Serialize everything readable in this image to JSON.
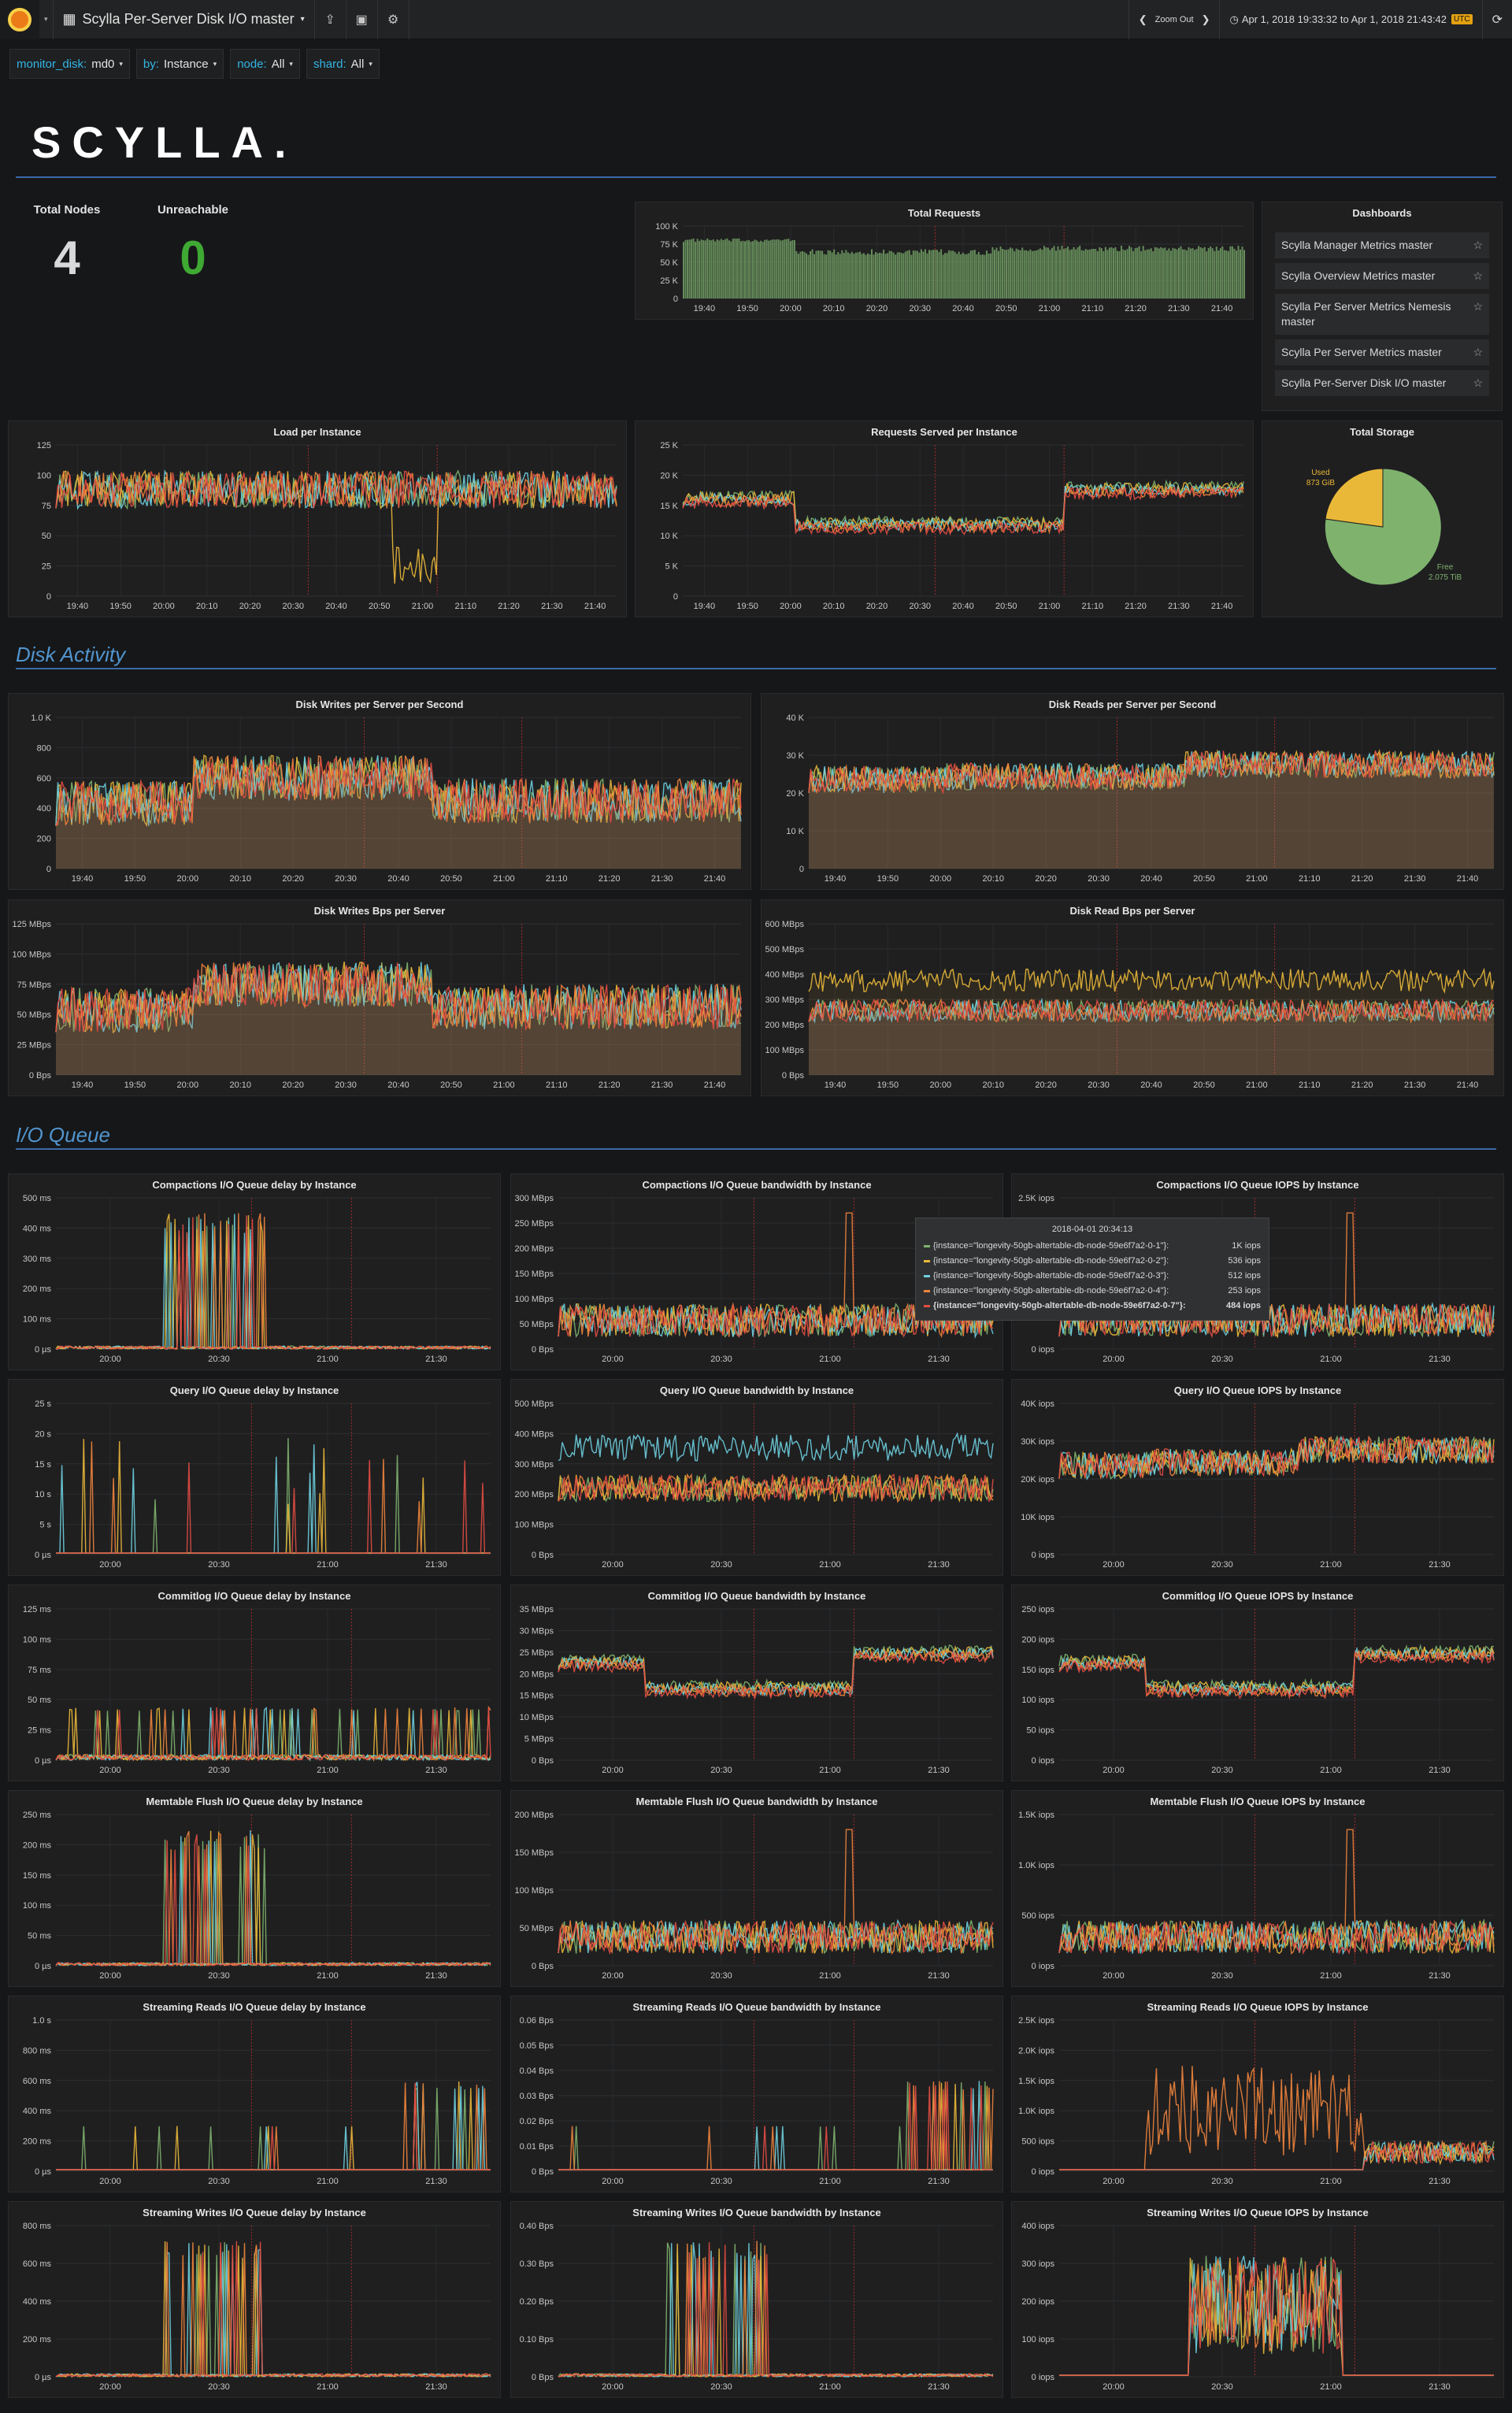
{
  "navbar": {
    "title": "Scylla Per-Server Disk I/O master",
    "zoom_out": "Zoom Out",
    "time_range": "Apr 1, 2018 19:33:32 to Apr 1, 2018 21:43:42",
    "timezone": "UTC",
    "icons": [
      "grafana-logo-icon",
      "dashboard-grid-icon",
      "share-icon",
      "save-icon",
      "settings-gear-icon",
      "chevron-left-icon",
      "chevron-right-icon",
      "clock-icon",
      "refresh-icon"
    ]
  },
  "variables": [
    {
      "key": "monitor_disk:",
      "value": "md0"
    },
    {
      "key": "by:",
      "value": "Instance"
    },
    {
      "key": "node:",
      "value": "All"
    },
    {
      "key": "shard:",
      "value": "All"
    }
  ],
  "brand": "SCYLLA.",
  "stats": {
    "total_nodes": {
      "label": "Total Nodes",
      "value": "4",
      "color": "#d8d9da"
    },
    "unreachable": {
      "label": "Unreachable",
      "value": "0",
      "color": "#3ea933"
    }
  },
  "dashboards": {
    "title": "Dashboards",
    "items": [
      "Scylla Manager Metrics master",
      "Scylla Overview Metrics master",
      "Scylla Per Server Metrics Nemesis master",
      "Scylla Per Server Metrics master",
      "Scylla Per-Server Disk I/O master"
    ]
  },
  "total_storage": {
    "title": "Total Storage",
    "used_label": "Used",
    "used_value": "873 GiB",
    "free_label": "Free",
    "free_value": "2.075 TiB",
    "used_color": "#eab839",
    "free_color": "#7eb26d"
  },
  "sections": {
    "disk_activity": "Disk Activity",
    "io_queue": "I/O Queue"
  },
  "colors": [
    "#7eb26d",
    "#eab839",
    "#6ed0e0",
    "#ef843c",
    "#e24d42"
  ],
  "tooltip": {
    "time": "2018-04-01 20:34:13",
    "rows": [
      {
        "name": "{instance=\"longevity-50gb-altertable-db-node-59e6f7a2-0-1\"}:",
        "value": "1K iops",
        "color": "#7eb26d"
      },
      {
        "name": "{instance=\"longevity-50gb-altertable-db-node-59e6f7a2-0-2\"}:",
        "value": "536 iops",
        "color": "#eab839"
      },
      {
        "name": "{instance=\"longevity-50gb-altertable-db-node-59e6f7a2-0-3\"}:",
        "value": "512 iops",
        "color": "#6ed0e0"
      },
      {
        "name": "{instance=\"longevity-50gb-altertable-db-node-59e6f7a2-0-4\"}:",
        "value": "253 iops",
        "color": "#ef843c"
      },
      {
        "name": "{instance=\"longevity-50gb-altertable-db-node-59e6f7a2-0-7\"}:",
        "value": "484 iops",
        "color": "#e24d42",
        "bold": true
      }
    ]
  },
  "chart_data": [
    {
      "id": "total-requests",
      "type": "bar",
      "title": "Total Requests",
      "yticks": [
        "100 K",
        "75 K",
        "50 K",
        "25 K",
        "0"
      ],
      "xticks": [
        "19:40",
        "19:50",
        "20:00",
        "20:10",
        "20:20",
        "20:30",
        "20:40",
        "20:50",
        "21:00",
        "21:10",
        "21:20",
        "21:30",
        "21:40"
      ],
      "profile": "requests",
      "series": 1
    },
    {
      "id": "load-per-instance",
      "type": "line",
      "title": "Load per Instance",
      "yticks": [
        "125",
        "100",
        "75",
        "50",
        "25",
        "0"
      ],
      "xticks": [
        "19:40",
        "19:50",
        "20:00",
        "20:10",
        "20:20",
        "20:30",
        "20:40",
        "20:50",
        "21:00",
        "21:10",
        "21:20",
        "21:30",
        "21:40"
      ],
      "profile": "load",
      "series": 5
    },
    {
      "id": "requests-served",
      "type": "line",
      "title": "Requests Served per Instance",
      "yticks": [
        "25 K",
        "20 K",
        "15 K",
        "10 K",
        "5 K",
        "0"
      ],
      "xticks": [
        "19:40",
        "19:50",
        "20:00",
        "20:10",
        "20:20",
        "20:30",
        "20:40",
        "20:50",
        "21:00",
        "21:10",
        "21:20",
        "21:30",
        "21:40"
      ],
      "profile": "served",
      "series": 5
    },
    {
      "id": "disk-writes",
      "type": "area",
      "title": "Disk Writes per Server per Second",
      "yticks": [
        "1.0 K",
        "800",
        "600",
        "400",
        "200",
        "0"
      ],
      "xticks": [
        "19:40",
        "19:50",
        "20:00",
        "20:10",
        "20:20",
        "20:30",
        "20:40",
        "20:50",
        "21:00",
        "21:10",
        "21:20",
        "21:30",
        "21:40"
      ],
      "profile": "writes",
      "series": 5
    },
    {
      "id": "disk-reads",
      "type": "area",
      "title": "Disk Reads per Server per Second",
      "yticks": [
        "40 K",
        "30 K",
        "20 K",
        "10 K",
        "0"
      ],
      "xticks": [
        "19:40",
        "19:50",
        "20:00",
        "20:10",
        "20:20",
        "20:30",
        "20:40",
        "20:50",
        "21:00",
        "21:10",
        "21:20",
        "21:30",
        "21:40"
      ],
      "profile": "reads",
      "series": 5
    },
    {
      "id": "disk-writes-bps",
      "type": "area",
      "title": "Disk Writes Bps per Server",
      "yticks": [
        "125 MBps",
        "100 MBps",
        "75 MBps",
        "50 MBps",
        "25 MBps",
        "0 Bps"
      ],
      "xticks": [
        "19:40",
        "19:50",
        "20:00",
        "20:10",
        "20:20",
        "20:30",
        "20:40",
        "20:50",
        "21:00",
        "21:10",
        "21:20",
        "21:30",
        "21:40"
      ],
      "profile": "writes",
      "series": 5
    },
    {
      "id": "disk-reads-bps",
      "type": "area",
      "title": "Disk Read Bps per Server",
      "yticks": [
        "600 MBps",
        "500 MBps",
        "400 MBps",
        "300 MBps",
        "200 MBps",
        "100 MBps",
        "0 Bps"
      ],
      "xticks": [
        "19:40",
        "19:50",
        "20:00",
        "20:10",
        "20:20",
        "20:30",
        "20:40",
        "20:50",
        "21:00",
        "21:10",
        "21:20",
        "21:30",
        "21:40"
      ],
      "profile": "readbps",
      "series": 5
    },
    {
      "id": "compactions-delay",
      "type": "line",
      "title": "Compactions I/O Queue delay by Instance",
      "yticks": [
        "500 ms",
        "400 ms",
        "300 ms",
        "200 ms",
        "100 ms",
        "0 µs"
      ],
      "xticks": [
        "20:00",
        "20:30",
        "21:00",
        "21:30"
      ],
      "profile": "spikes-mid",
      "series": 5
    },
    {
      "id": "compactions-bw",
      "type": "line",
      "title": "Compactions I/O Queue bandwidth by Instance",
      "yticks": [
        "300 MBps",
        "250 MBps",
        "200 MBps",
        "150 MBps",
        "100 MBps",
        "50 MBps",
        "0 Bps"
      ],
      "xticks": [
        "20:00",
        "20:30",
        "21:00",
        "21:30"
      ],
      "profile": "noisy-low",
      "series": 5
    },
    {
      "id": "compactions-iops",
      "type": "line",
      "title": "Compactions I/O Queue IOPS by Instance",
      "yticks": [
        "2.5K iops",
        "",
        "",
        "",
        "",
        "0 iops"
      ],
      "xticks": [
        "20:00",
        "20:30",
        "21:00",
        "21:30"
      ],
      "profile": "noisy-low",
      "series": 5
    },
    {
      "id": "query-delay",
      "type": "line",
      "title": "Query I/O Queue delay by Instance",
      "yticks": [
        "25 s",
        "20 s",
        "15 s",
        "10 s",
        "5 s",
        "0 µs"
      ],
      "xticks": [
        "20:00",
        "20:30",
        "21:00",
        "21:30"
      ],
      "profile": "peaks",
      "series": 5
    },
    {
      "id": "query-bw",
      "type": "line",
      "title": "Query I/O Queue bandwidth by Instance",
      "yticks": [
        "500 MBps",
        "400 MBps",
        "300 MBps",
        "200 MBps",
        "100 MBps",
        "0 Bps"
      ],
      "xticks": [
        "20:00",
        "20:30",
        "21:00",
        "21:30"
      ],
      "profile": "querybw",
      "series": 5
    },
    {
      "id": "query-iops",
      "type": "line",
      "title": "Query I/O Queue IOPS by Instance",
      "yticks": [
        "40K iops",
        "30K iops",
        "20K iops",
        "10K iops",
        "0 iops"
      ],
      "xticks": [
        "20:00",
        "20:30",
        "21:00",
        "21:30"
      ],
      "profile": "reads",
      "series": 5
    },
    {
      "id": "commitlog-delay",
      "type": "line",
      "title": "Commitlog I/O Queue delay by Instance",
      "yticks": [
        "125 ms",
        "100 ms",
        "75 ms",
        "50 ms",
        "25 ms",
        "0 µs"
      ],
      "xticks": [
        "20:00",
        "20:30",
        "21:00",
        "21:30"
      ],
      "profile": "spikes-wide",
      "series": 5
    },
    {
      "id": "commitlog-bw",
      "type": "line",
      "title": "Commitlog I/O Queue bandwidth by Instance",
      "yticks": [
        "35 MBps",
        "30 MBps",
        "25 MBps",
        "20 MBps",
        "15 MBps",
        "10 MBps",
        "5 MBps",
        "0 Bps"
      ],
      "xticks": [
        "20:00",
        "20:30",
        "21:00",
        "21:30"
      ],
      "profile": "served",
      "series": 5
    },
    {
      "id": "commitlog-iops",
      "type": "line",
      "title": "Commitlog I/O Queue IOPS by Instance",
      "yticks": [
        "250 iops",
        "200 iops",
        "150 iops",
        "100 iops",
        "50 iops",
        "0 iops"
      ],
      "xticks": [
        "20:00",
        "20:30",
        "21:00",
        "21:30"
      ],
      "profile": "served",
      "series": 5
    },
    {
      "id": "memtable-delay",
      "type": "line",
      "title": "Memtable Flush I/O Queue delay by Instance",
      "yticks": [
        "250 ms",
        "200 ms",
        "150 ms",
        "100 ms",
        "50 ms",
        "0 µs"
      ],
      "xticks": [
        "20:00",
        "20:30",
        "21:00",
        "21:30"
      ],
      "profile": "spikes-mid",
      "series": 5
    },
    {
      "id": "memtable-bw",
      "type": "line",
      "title": "Memtable Flush I/O Queue bandwidth by Instance",
      "yticks": [
        "200 MBps",
        "150 MBps",
        "100 MBps",
        "50 MBps",
        "0 Bps"
      ],
      "xticks": [
        "20:00",
        "20:30",
        "21:00",
        "21:30"
      ],
      "profile": "noisy-low",
      "series": 5
    },
    {
      "id": "memtable-iops",
      "type": "line",
      "title": "Memtable Flush I/O Queue IOPS by Instance",
      "yticks": [
        "1.5K iops",
        "1.0K iops",
        "500 iops",
        "0 iops"
      ],
      "xticks": [
        "20:00",
        "20:30",
        "21:00",
        "21:30"
      ],
      "profile": "noisy-low",
      "series": 5
    },
    {
      "id": "streaming-reads-delay",
      "type": "line",
      "title": "Streaming Reads I/O Queue delay by Instance",
      "yticks": [
        "1.0 s",
        "800 ms",
        "600 ms",
        "400 ms",
        "200 ms",
        "0 µs"
      ],
      "xticks": [
        "20:00",
        "20:30",
        "21:00",
        "21:30"
      ],
      "profile": "late-spikes",
      "series": 5
    },
    {
      "id": "streaming-reads-bw",
      "type": "line",
      "title": "Streaming Reads I/O Queue bandwidth by Instance",
      "yticks": [
        "0.06 Bps",
        "0.05 Bps",
        "0.04 Bps",
        "0.03 Bps",
        "0.02 Bps",
        "0.01 Bps",
        "0 Bps"
      ],
      "xticks": [
        "20:00",
        "20:30",
        "21:00",
        "21:30"
      ],
      "profile": "late-spikes",
      "series": 5
    },
    {
      "id": "streaming-reads-iops",
      "type": "line",
      "title": "Streaming Reads I/O Queue IOPS by Instance",
      "yticks": [
        "2.5K iops",
        "2.0K iops",
        "1.5K iops",
        "1.0K iops",
        "500 iops",
        "0 iops"
      ],
      "xticks": [
        "20:00",
        "20:30",
        "21:00",
        "21:30"
      ],
      "profile": "stream-iops",
      "series": 5
    },
    {
      "id": "streaming-writes-delay",
      "type": "line",
      "title": "Streaming Writes I/O Queue delay by Instance",
      "yticks": [
        "800 ms",
        "600 ms",
        "400 ms",
        "200 ms",
        "0 µs"
      ],
      "xticks": [
        "20:00",
        "20:30",
        "21:00",
        "21:30"
      ],
      "profile": "spikes-mid",
      "series": 5
    },
    {
      "id": "streaming-writes-bw",
      "type": "line",
      "title": "Streaming Writes I/O Queue bandwidth by Instance",
      "yticks": [
        "0.40 Bps",
        "0.30 Bps",
        "0.20 Bps",
        "0.10 Bps",
        "0 Bps"
      ],
      "xticks": [
        "20:00",
        "20:30",
        "21:00",
        "21:30"
      ],
      "profile": "spikes-mid",
      "series": 5
    },
    {
      "id": "streaming-writes-iops",
      "type": "line",
      "title": "Streaming Writes I/O Queue IOPS by Instance",
      "yticks": [
        "400 iops",
        "300 iops",
        "200 iops",
        "100 iops",
        "0 iops"
      ],
      "xticks": [
        "20:00",
        "20:30",
        "21:00",
        "21:30"
      ],
      "profile": "stream-block",
      "series": 5
    }
  ]
}
